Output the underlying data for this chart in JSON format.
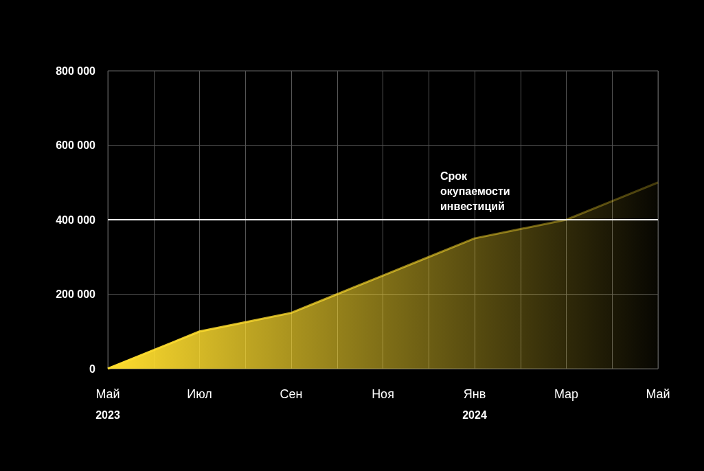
{
  "chart_data": {
    "type": "area",
    "categories": [
      "Май\n2023",
      null,
      "Июл",
      null,
      "Сен",
      null,
      "Ноя",
      null,
      "Янв\n2024",
      null,
      "Мар",
      null,
      "Май"
    ],
    "series": [
      {
        "color": "#ffdd2e",
        "values": [
          0,
          50000,
          100000,
          125000,
          150000,
          200000,
          250000,
          300000,
          350000,
          375000,
          400000,
          450000,
          500000
        ]
      }
    ],
    "ylim": [
      0,
      800000
    ],
    "yticks": [
      0,
      {
        "value": 200000,
        "label": "200 000"
      },
      {
        "value": 400000,
        "label": "400 000"
      },
      {
        "value": 600000,
        "label": "600 000"
      },
      {
        "value": 800000,
        "label": "800 000"
      }
    ],
    "ref_lines": [
      {
        "axis": "y",
        "value": 400000,
        "label": "Срок окупаемости инвестиций",
        "color": "#ffffff"
      }
    ],
    "grid": true,
    "marker": "none",
    "line_style": "solid"
  }
}
